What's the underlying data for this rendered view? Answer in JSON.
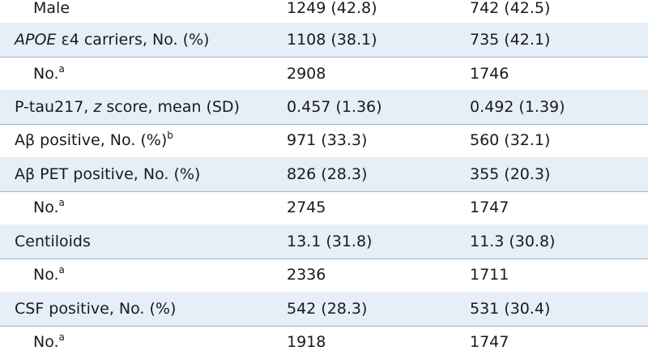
{
  "rows": [
    {
      "label": "Male",
      "v1": "1249 (42.8)",
      "v2": "742 (42.5)"
    },
    {
      "label_italic": "APOE",
      "label_rest": " ε4 carriers, No. (%)",
      "v1": "1108 (38.1)",
      "v2": "735 (42.1)"
    },
    {
      "label": "No.",
      "sup": "a",
      "v1": "2908",
      "v2": "1746"
    },
    {
      "label_pre": "P-tau217, ",
      "label_italic": "z",
      "label_post": " score, mean (SD)",
      "v1": "0.457 (1.36)",
      "v2": "0.492 (1.39)"
    },
    {
      "label": "Aβ positive, No. (%)",
      "sup": "b",
      "v1": "971 (33.3)",
      "v2": "560 (32.1)"
    },
    {
      "label": "Aβ PET positive, No. (%)",
      "v1": "826 (28.3)",
      "v2": "355 (20.3)"
    },
    {
      "label": "No.",
      "sup": "a",
      "v1": "2745",
      "v2": "1747"
    },
    {
      "label": "Centiloids",
      "v1": "13.1 (31.8)",
      "v2": "11.3 (30.8)"
    },
    {
      "label": "No.",
      "sup": "a",
      "v1": "2336",
      "v2": "1711"
    },
    {
      "label": "CSF positive, No. (%)",
      "v1": "542 (28.3)",
      "v2": "531 (30.4)"
    },
    {
      "label": "No.",
      "sup": "a",
      "v1": "1918",
      "v2": "1747"
    }
  ]
}
